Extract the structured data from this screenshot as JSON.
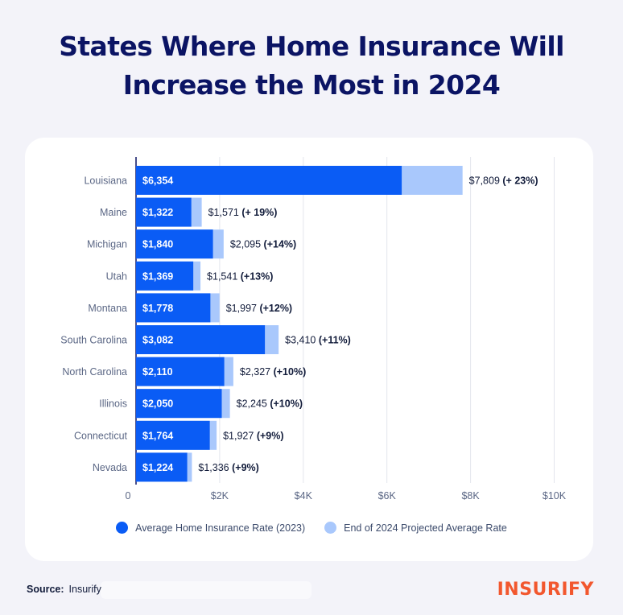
{
  "title_line1": "States Where Home Insurance Will",
  "title_line2": "Increase the Most in 2024",
  "colors": {
    "base": "#0a5cf5",
    "projected": "#a9c8fc",
    "title": "#0b1464",
    "logo": "#f2572e"
  },
  "chart_data": {
    "type": "bar",
    "orientation": "horizontal",
    "stacked_overlay": true,
    "xlim": [
      0,
      10000
    ],
    "xticks": [
      0,
      2000,
      4000,
      6000,
      8000,
      10000
    ],
    "xtick_labels": [
      "0",
      "$2K",
      "$4K",
      "$6K",
      "$8K",
      "$10K"
    ],
    "categories": [
      "Louisiana",
      "Maine",
      "Michigan",
      "Utah",
      "Montana",
      "South Carolina",
      "North Carolina",
      "Illinois",
      "Connecticut",
      "Nevada"
    ],
    "series": [
      {
        "name": "Average Home Insurance Rate (2023)",
        "values": [
          6354,
          1322,
          1840,
          1369,
          1778,
          3082,
          2110,
          2050,
          1764,
          1224
        ],
        "labels": [
          "$6,354",
          "$1,322",
          "$1,840",
          "$1,369",
          "$1,778",
          "$3,082",
          "$2,110",
          "$2,050",
          "$1,764",
          "$1,224"
        ]
      },
      {
        "name": "End of 2024 Projected Average Rate",
        "values": [
          7809,
          1571,
          2095,
          1541,
          1997,
          3410,
          2327,
          2245,
          1927,
          1336
        ],
        "labels": [
          "$7,809",
          "$1,571",
          "$2,095",
          "$1,541",
          "$1,997",
          "$3,410",
          "$2,327",
          "$2,245",
          "$1,927",
          "$1,336"
        ],
        "changes": [
          "(+ 23%)",
          "(+ 19%)",
          "(+14%)",
          "(+13%)",
          "(+12%)",
          "(+11%)",
          "(+10%)",
          "(+10%)",
          "(+9%)",
          "(+9%)"
        ]
      }
    ],
    "legend_position": "bottom-center",
    "grid": true
  },
  "legend": [
    {
      "label": "Average Home Insurance Rate (2023)",
      "color": "#0a5cf5"
    },
    {
      "label": "End of 2024 Projected Average Rate",
      "color": "#a9c8fc"
    }
  ],
  "source_label": "Source:",
  "source_value": "Insurify",
  "logo_text": "INSURIFY"
}
